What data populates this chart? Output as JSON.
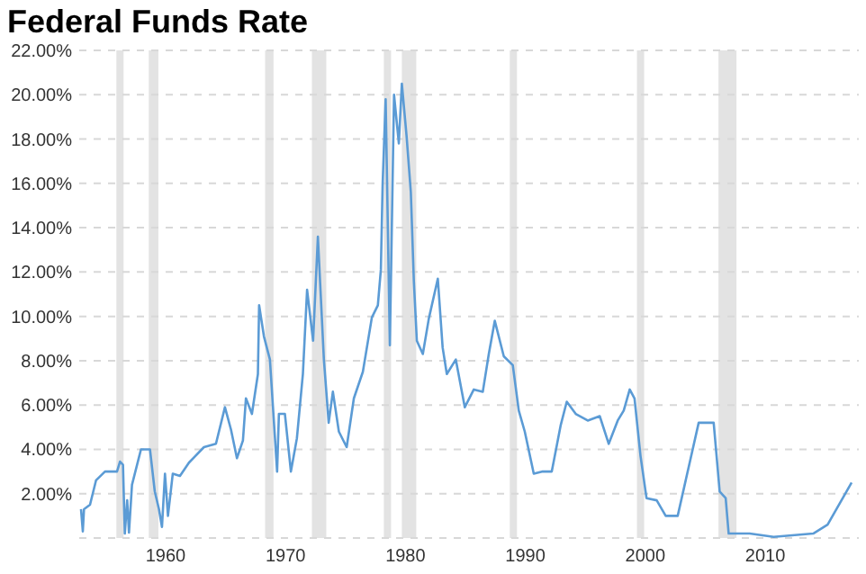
{
  "chart_data": {
    "type": "line",
    "title": "Federal Funds Rate",
    "xlim": [
      1952.8,
      2017.8
    ],
    "xticks": [
      1960,
      1970,
      1980,
      1990,
      2000,
      2010
    ],
    "ylim": [
      0,
      22
    ],
    "yticks": [
      {
        "value": 0,
        "label": null
      },
      {
        "value": 2,
        "label": "2.00%"
      },
      {
        "value": 4,
        "label": "4.00%"
      },
      {
        "value": 6,
        "label": "6.00%"
      },
      {
        "value": 8,
        "label": "8.00%"
      },
      {
        "value": 10,
        "label": "10.00%"
      },
      {
        "value": 12,
        "label": "12.00%"
      },
      {
        "value": 14,
        "label": "14.00%"
      },
      {
        "value": 16,
        "label": "16.00%"
      },
      {
        "value": 18,
        "label": "18.00%"
      },
      {
        "value": 20,
        "label": "20.00%"
      },
      {
        "value": 22,
        "label": "22.00%"
      }
    ],
    "grid": "y",
    "marker": "none",
    "line_style": "solid",
    "bands": [
      {
        "axis": "x",
        "from": 1955.9,
        "to": 1956.5,
        "color": "#e3e3e3"
      },
      {
        "axis": "x",
        "from": 1958.6,
        "to": 1959.4,
        "color": "#e3e3e3"
      },
      {
        "axis": "x",
        "from": 1968.3,
        "to": 1969.0,
        "color": "#e3e3e3"
      },
      {
        "axis": "x",
        "from": 1972.2,
        "to": 1973.4,
        "color": "#e3e3e3"
      },
      {
        "axis": "x",
        "from": 1978.2,
        "to": 1978.8,
        "color": "#e3e3e3"
      },
      {
        "axis": "x",
        "from": 1979.7,
        "to": 1980.9,
        "color": "#e3e3e3"
      },
      {
        "axis": "x",
        "from": 1988.7,
        "to": 1989.3,
        "color": "#e3e3e3"
      },
      {
        "axis": "x",
        "from": 1999.3,
        "to": 1999.9,
        "color": "#e3e3e3"
      },
      {
        "axis": "x",
        "from": 2006.1,
        "to": 2007.6,
        "color": "#e3e3e3"
      }
    ],
    "series": [
      {
        "color": "#5b9bd5",
        "x": [
          1952.95,
          1953.1,
          1953.2,
          1953.7,
          1954.2,
          1954.95,
          1955.95,
          1956.2,
          1956.45,
          1956.6,
          1956.8,
          1956.95,
          1957.2,
          1957.95,
          1958.7,
          1959.1,
          1959.45,
          1959.7,
          1959.95,
          1960.2,
          1960.6,
          1961.2,
          1961.95,
          1963.2,
          1964.2,
          1964.95,
          1965.45,
          1965.95,
          1966.45,
          1966.7,
          1967.2,
          1967.7,
          1967.8,
          1968.2,
          1968.7,
          1969.3,
          1969.45,
          1969.95,
          1970.45,
          1970.95,
          1971.45,
          1971.8,
          1972.3,
          1972.7,
          1973.2,
          1973.6,
          1973.95,
          1974.45,
          1975.1,
          1975.7,
          1976.45,
          1977.2,
          1977.7,
          1977.95,
          1978.1,
          1978.35,
          1978.7,
          1979.05,
          1979.45,
          1979.7,
          1980.1,
          1980.45,
          1980.7,
          1980.95,
          1981.45,
          1981.95,
          1982.7,
          1983.1,
          1983.45,
          1984.2,
          1984.95,
          1985.7,
          1986.45,
          1986.95,
          1987.45,
          1988.2,
          1988.95,
          1989.45,
          1989.95,
          1990.7,
          1991.45,
          1992.2,
          1992.95,
          1993.45,
          1994.2,
          1995.2,
          1996.2,
          1996.95,
          1997.7,
          1998.2,
          1998.7,
          1999.1,
          1999.6,
          2000.1,
          2000.95,
          2001.7,
          2002.7,
          2004.45,
          2005.7,
          2006.2,
          2006.7,
          2006.95,
          2008.7,
          2010.7,
          2014,
          2015.2,
          2017.2
        ],
        "values": [
          1.3,
          0.3,
          1.3,
          1.5,
          2.6,
          3.0,
          3.0,
          3.45,
          3.3,
          0.2,
          1.7,
          0.25,
          2.4,
          4.0,
          4.0,
          2.1,
          1.3,
          0.5,
          2.9,
          1.0,
          2.9,
          2.8,
          3.4,
          4.1,
          4.25,
          5.9,
          4.9,
          3.6,
          4.4,
          6.3,
          5.6,
          7.4,
          10.5,
          9.1,
          8.05,
          3.0,
          5.6,
          5.6,
          3.0,
          4.5,
          7.4,
          11.2,
          8.9,
          13.6,
          8.05,
          5.2,
          6.6,
          4.8,
          4.1,
          6.3,
          7.5,
          9.95,
          10.5,
          12.1,
          16.0,
          19.8,
          8.7,
          20.0,
          17.8,
          20.5,
          18.1,
          15.6,
          11.6,
          8.9,
          8.3,
          9.9,
          11.7,
          8.6,
          7.4,
          8.05,
          5.9,
          6.7,
          6.6,
          8.3,
          9.8,
          8.2,
          7.8,
          5.75,
          4.8,
          2.9,
          3.0,
          3.0,
          5.1,
          6.15,
          5.6,
          5.3,
          5.5,
          4.25,
          5.3,
          5.75,
          6.7,
          6.3,
          3.7,
          1.8,
          1.7,
          1.0,
          1.0,
          5.2,
          5.2,
          2.1,
          1.8,
          0.2,
          0.2,
          0.05,
          0.2,
          0.6,
          2.5
        ]
      }
    ]
  }
}
